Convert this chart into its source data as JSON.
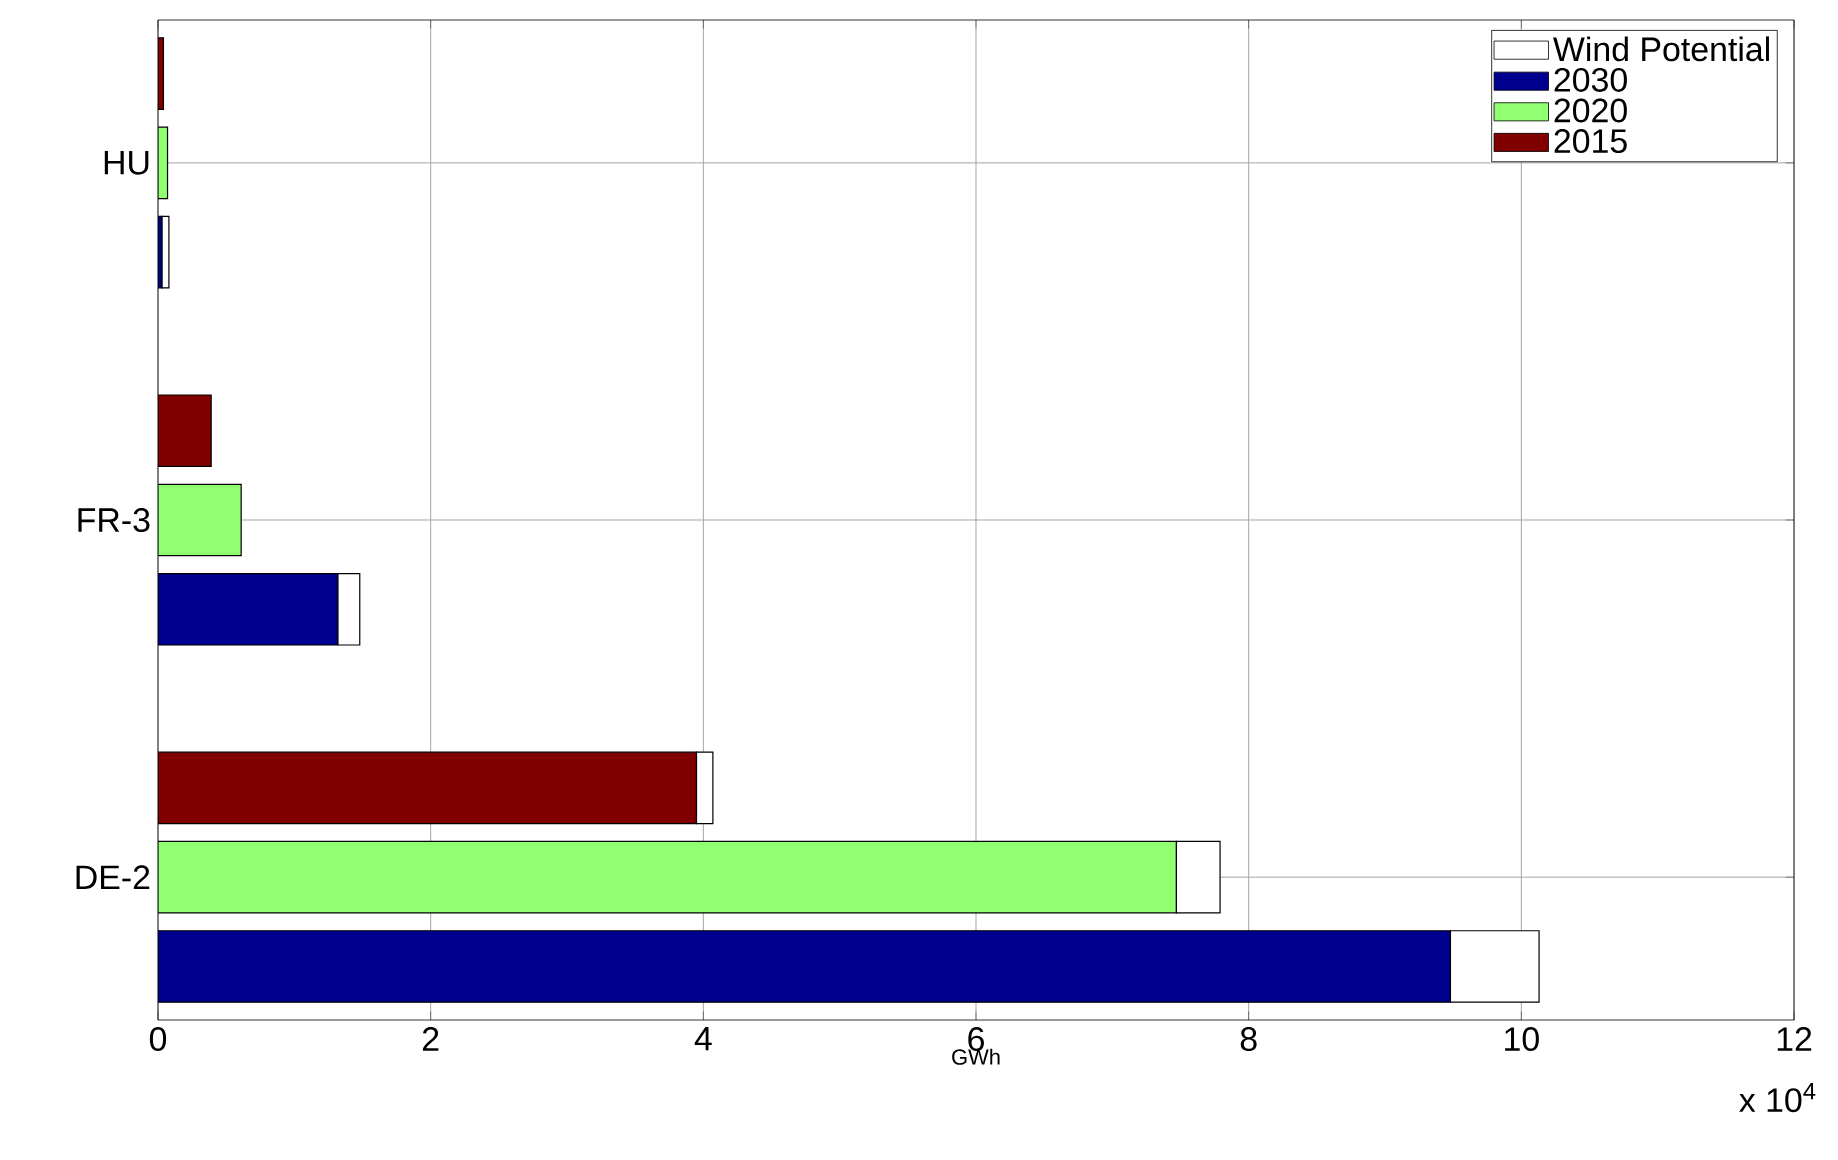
{
  "chart_data": {
    "type": "bar",
    "orientation": "horizontal",
    "stacked": true,
    "xlabel": "GWh",
    "categories": [
      null,
      "HU",
      null,
      null,
      null,
      "FR-3",
      null,
      null,
      null,
      "DE-2",
      null
    ],
    "series": [
      {
        "name": "2030",
        "color": "#000090",
        "values": [
          null,
          null,
          0.03,
          null,
          null,
          null,
          1.32,
          null,
          null,
          null,
          9.48
        ]
      },
      {
        "name": "2020",
        "color": "#90ff70",
        "values": [
          null,
          0.07,
          null,
          null,
          null,
          0.61,
          null,
          null,
          null,
          7.47,
          null
        ]
      },
      {
        "name": "2015",
        "color": "#800000",
        "values": [
          0.04,
          null,
          null,
          null,
          0.39,
          null,
          null,
          null,
          3.95,
          null,
          null
        ]
      },
      {
        "name": "Wind Potential",
        "color": "#ffffff",
        "values": [
          null,
          null,
          0.05,
          null,
          null,
          null,
          0.16,
          null,
          0.12,
          0.32,
          0.65
        ]
      }
    ],
    "xlim": [
      0,
      12
    ],
    "xticks": [
      0,
      2,
      4,
      6,
      8,
      10,
      12
    ],
    "annotations": [
      "x 10$^{4}$"
    ],
    "grid": true,
    "legend": "top right"
  }
}
